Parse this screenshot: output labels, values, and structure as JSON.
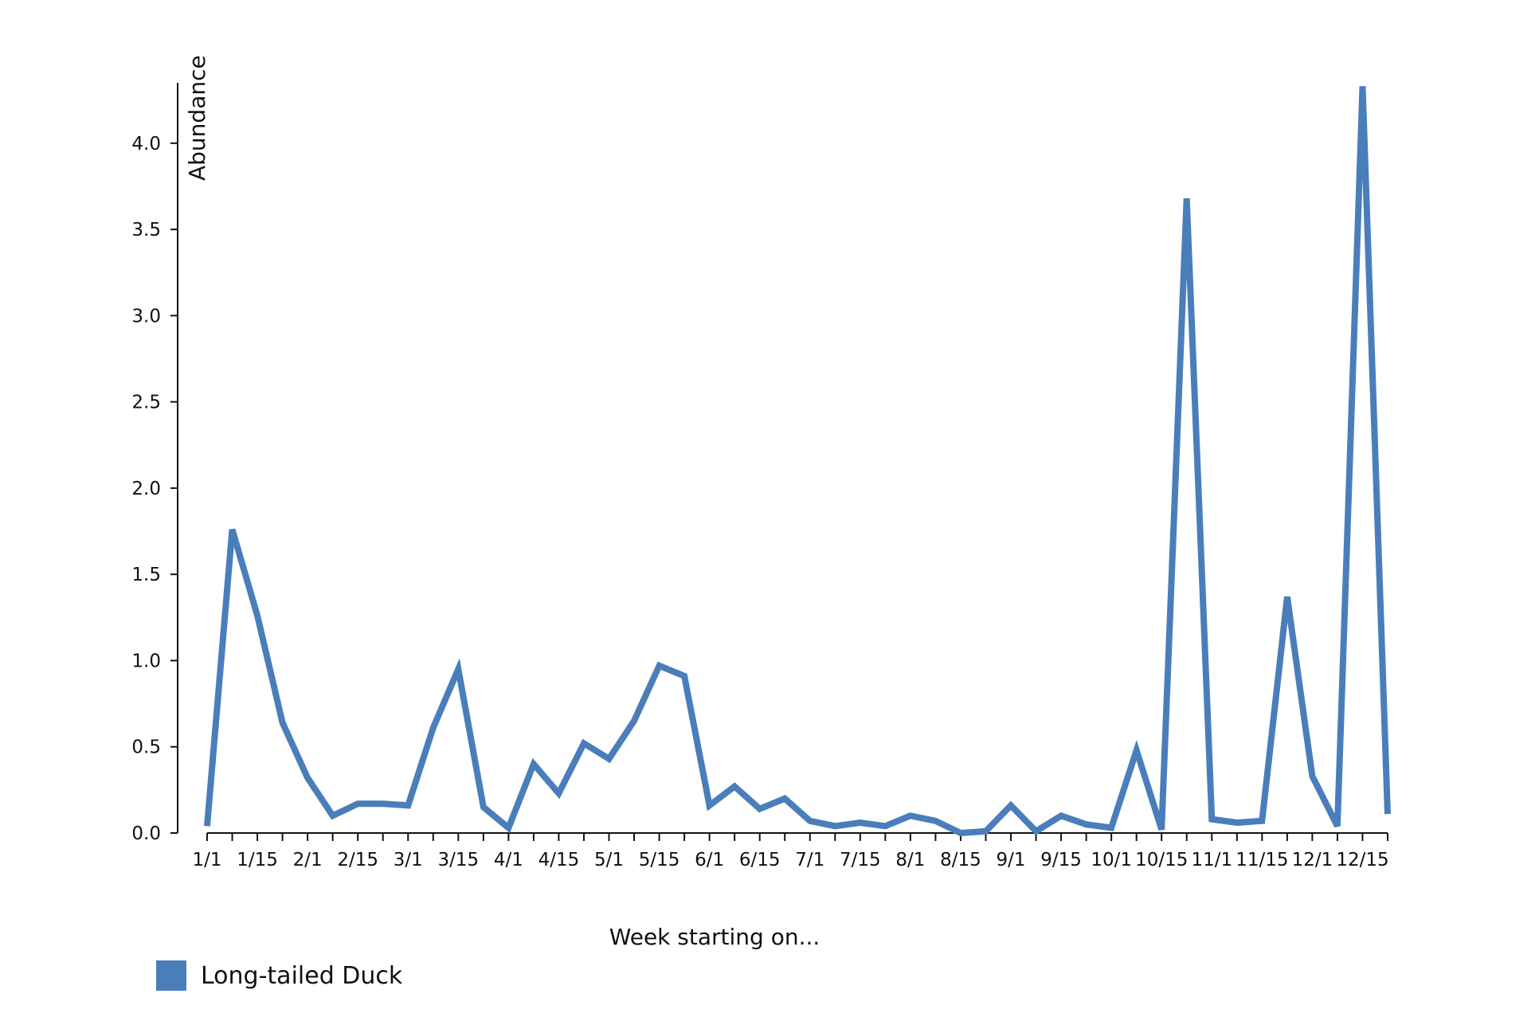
{
  "chart_data": {
    "type": "line",
    "ylabel": "Abundance",
    "xlabel": "Week starting on...",
    "ylim": [
      0,
      4.35
    ],
    "yticks": [
      "0.0",
      "0.5",
      "1.0",
      "1.5",
      "2.0",
      "2.5",
      "3.0",
      "3.5",
      "4.0"
    ],
    "xtick_labels": [
      "1/1",
      "1/15",
      "2/1",
      "2/15",
      "3/1",
      "3/15",
      "4/1",
      "4/15",
      "5/1",
      "5/15",
      "6/1",
      "6/15",
      "7/1",
      "7/15",
      "8/1",
      "8/15",
      "9/1",
      "9/15",
      "10/1",
      "10/15",
      "11/1",
      "11/15",
      "12/1",
      "12/15"
    ],
    "x": [
      "1/1",
      "1/8",
      "1/15",
      "1/22",
      "2/1",
      "2/8",
      "2/15",
      "2/22",
      "3/1",
      "3/8",
      "3/15",
      "3/22",
      "4/1",
      "4/8",
      "4/15",
      "4/22",
      "5/1",
      "5/8",
      "5/15",
      "5/22",
      "6/1",
      "6/8",
      "6/15",
      "6/22",
      "7/1",
      "7/8",
      "7/15",
      "7/22",
      "8/1",
      "8/8",
      "8/15",
      "8/22",
      "9/1",
      "9/8",
      "9/15",
      "9/22",
      "10/1",
      "10/8",
      "10/15",
      "10/22",
      "11/1",
      "11/8",
      "11/15",
      "11/22",
      "12/1",
      "12/8",
      "12/15",
      "12/22"
    ],
    "series": [
      {
        "name": "Long-tailed Duck",
        "color": "#4a7ebb",
        "values": [
          0.04,
          1.76,
          1.26,
          0.64,
          0.32,
          0.1,
          0.17,
          0.17,
          0.16,
          0.61,
          0.95,
          0.15,
          0.03,
          0.4,
          0.23,
          0.52,
          0.43,
          0.65,
          0.97,
          0.91,
          0.16,
          0.27,
          0.14,
          0.2,
          0.07,
          0.04,
          0.06,
          0.04,
          0.1,
          0.07,
          0.0,
          0.01,
          0.16,
          0.01,
          0.1,
          0.05,
          0.03,
          0.48,
          0.02,
          3.68,
          0.08,
          0.06,
          0.07,
          1.37,
          0.33,
          0.04,
          4.33,
          0.11
        ]
      }
    ]
  },
  "legend": {
    "label": "Long-tailed Duck",
    "color": "#4a7ebb"
  }
}
